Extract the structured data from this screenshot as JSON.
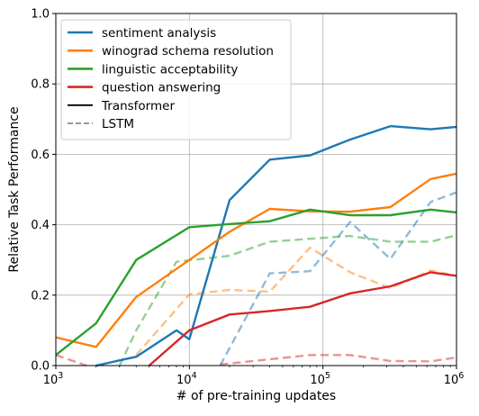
{
  "chart_data": {
    "type": "line",
    "xlabel": "# of pre-training updates",
    "ylabel": "Relative Task Performance",
    "xscale": "log",
    "xlim": [
      1000,
      1000000
    ],
    "ylim": [
      0,
      1.0
    ],
    "grid": true,
    "legend_position": "top-left",
    "x_tick_labels": [
      {
        "base": "10",
        "exp": "3",
        "value": 1000
      },
      {
        "base": "10",
        "exp": "4",
        "value": 10000
      },
      {
        "base": "10",
        "exp": "5",
        "value": 100000
      },
      {
        "base": "10",
        "exp": "6",
        "value": 1000000
      }
    ],
    "y_tick_labels": [
      "0.0",
      "0.2",
      "0.4",
      "0.6",
      "0.8",
      "1.0"
    ],
    "y_ticks": [
      0,
      0.2,
      0.4,
      0.6,
      0.8,
      1.0
    ],
    "legend": [
      {
        "label": "sentiment analysis",
        "color": "#1f77b4",
        "style": "solid"
      },
      {
        "label": "winograd schema resolution",
        "color": "#ff7f0e",
        "style": "solid"
      },
      {
        "label": "linguistic acceptability",
        "color": "#2ca02c",
        "style": "solid"
      },
      {
        "label": "question answering",
        "color": "#d62728",
        "style": "solid"
      },
      {
        "label": "Transformer",
        "color": "#000000",
        "style": "solid"
      },
      {
        "label": "LSTM",
        "color": "#999999",
        "style": "dashed"
      }
    ],
    "series": [
      {
        "name": "sentiment analysis",
        "model": "Transformer",
        "color": "#1f77b4",
        "x": [
          2000,
          4000,
          8000,
          10000,
          20000,
          40000,
          80000,
          160000,
          320000,
          640000,
          1000000
        ],
        "y": [
          0.0,
          0.025,
          0.1,
          0.075,
          0.47,
          0.585,
          0.597,
          0.642,
          0.68,
          0.671,
          0.678
        ]
      },
      {
        "name": "winograd schema resolution",
        "model": "Transformer",
        "color": "#ff7f0e",
        "x": [
          1000,
          2000,
          4000,
          10000,
          20000,
          40000,
          80000,
          160000,
          320000,
          640000,
          1000000
        ],
        "y": [
          0.08,
          0.053,
          0.195,
          0.3,
          0.38,
          0.445,
          0.438,
          0.437,
          0.45,
          0.53,
          0.545
        ]
      },
      {
        "name": "linguistic acceptability",
        "model": "Transformer",
        "color": "#2ca02c",
        "x": [
          1000,
          2000,
          4000,
          10000,
          20000,
          40000,
          80000,
          160000,
          320000,
          640000,
          1000000
        ],
        "y": [
          0.03,
          0.12,
          0.3,
          0.393,
          0.402,
          0.41,
          0.443,
          0.427,
          0.427,
          0.443,
          0.435
        ]
      },
      {
        "name": "question answering",
        "model": "Transformer",
        "color": "#d62728",
        "x": [
          5000,
          10000,
          20000,
          40000,
          80000,
          160000,
          320000,
          640000,
          1000000
        ],
        "y": [
          0.0,
          0.1,
          0.145,
          0.155,
          0.167,
          0.205,
          0.225,
          0.265,
          0.255
        ]
      },
      {
        "name": "sentiment analysis",
        "model": "LSTM",
        "color": "#1f77b4",
        "x": [
          17000,
          40000,
          80000,
          160000,
          320000,
          640000,
          1000000
        ],
        "y": [
          0.0,
          0.262,
          0.268,
          0.408,
          0.303,
          0.465,
          0.492
        ]
      },
      {
        "name": "winograd schema resolution",
        "model": "LSTM",
        "color": "#ff7f0e",
        "x": [
          4000,
          10000,
          20000,
          40000,
          80000,
          160000,
          320000,
          640000,
          1000000
        ],
        "y": [
          0.03,
          0.202,
          0.215,
          0.21,
          0.335,
          0.265,
          0.22,
          0.27,
          0.255
        ]
      },
      {
        "name": "linguistic acceptability",
        "model": "LSTM",
        "color": "#2ca02c",
        "x": [
          3000,
          4000,
          8000,
          20000,
          40000,
          80000,
          160000,
          320000,
          640000,
          1000000
        ],
        "y": [
          0.0,
          0.1,
          0.295,
          0.312,
          0.352,
          0.36,
          0.368,
          0.352,
          0.352,
          0.37
        ]
      },
      {
        "name": "question answering",
        "model": "LSTM",
        "color": "#d62728",
        "x": [
          17000,
          40000,
          80000,
          160000,
          320000,
          640000,
          1000000
        ],
        "y": [
          0.003,
          0.018,
          0.03,
          0.03,
          0.013,
          0.012,
          0.023
        ]
      },
      {
        "name": "question answering",
        "model": "LSTM",
        "color": "#d62728",
        "x": [
          1000,
          1700
        ],
        "y": [
          0.03,
          0.0
        ]
      }
    ]
  }
}
